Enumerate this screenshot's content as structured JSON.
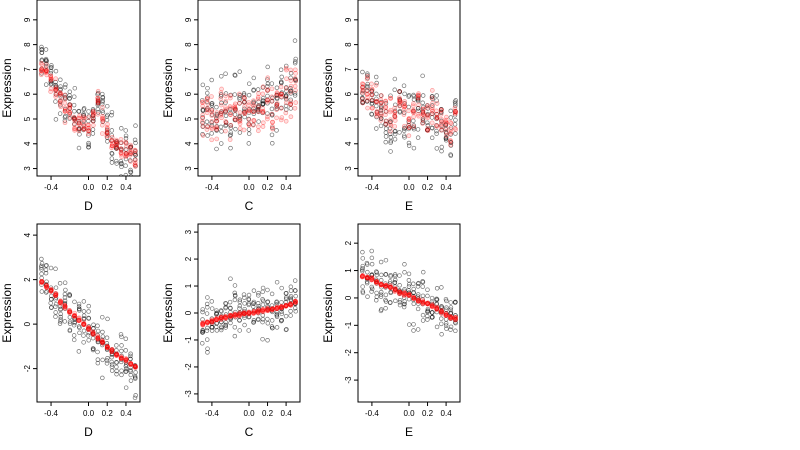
{
  "chart_data": [
    {
      "type": "scatter",
      "xlabel": "D",
      "ylabel": "Expression",
      "xlim": [
        -0.55,
        0.55
      ],
      "ylim": [
        2.7,
        9.8
      ],
      "xticks": [
        "-0.4",
        "0.0",
        "0.2",
        "0.4"
      ],
      "xtick_values": [
        -0.4,
        0.0,
        0.2,
        0.4
      ],
      "yticks": [
        "3",
        "4",
        "5",
        "6",
        "7",
        "8",
        "9"
      ],
      "ytick_values": [
        3,
        4,
        5,
        6,
        7,
        8,
        9
      ],
      "grid": false,
      "colors": {
        "observed": "#000000",
        "fitted": "#ff0000"
      },
      "x_groups": [
        -0.5,
        -0.45,
        -0.4,
        -0.35,
        -0.3,
        -0.25,
        -0.2,
        -0.15,
        -0.1,
        -0.05,
        0.0,
        0.05,
        0.1,
        0.15,
        0.2,
        0.25,
        0.3,
        0.35,
        0.4,
        0.45,
        0.5
      ],
      "observed_center": [
        7.3,
        7.2,
        6.6,
        6.3,
        5.9,
        5.6,
        5.4,
        5.1,
        5.0,
        4.8,
        4.6,
        5.0,
        5.8,
        5.1,
        4.7,
        4.1,
        3.9,
        3.8,
        3.7,
        3.6,
        3.5
      ],
      "observed_spread": 1.0,
      "fitted_center": [
        7.0,
        6.9,
        6.5,
        6.2,
        5.8,
        5.5,
        5.3,
        5.0,
        4.9,
        4.8,
        4.6,
        5.0,
        5.7,
        5.0,
        4.6,
        4.1,
        3.9,
        3.8,
        3.7,
        3.6,
        3.5
      ],
      "fitted_spread": 0.45
    },
    {
      "type": "scatter",
      "xlabel": "C",
      "ylabel": "Expression",
      "xlim": [
        -0.55,
        0.55
      ],
      "ylim": [
        2.7,
        9.8
      ],
      "xticks": [
        "-0.4",
        "0.0",
        "0.2",
        "0.4"
      ],
      "xtick_values": [
        -0.4,
        0.0,
        0.2,
        0.4
      ],
      "yticks": [
        "3",
        "4",
        "5",
        "6",
        "7",
        "8",
        "9"
      ],
      "ytick_values": [
        3,
        4,
        5,
        6,
        7,
        8,
        9
      ],
      "grid": false,
      "colors": {
        "observed": "#000000",
        "fitted": "#ff0000"
      },
      "x_groups": [
        -0.5,
        -0.45,
        -0.4,
        -0.35,
        -0.3,
        -0.25,
        -0.2,
        -0.15,
        -0.1,
        -0.05,
        0.0,
        0.05,
        0.1,
        0.15,
        0.2,
        0.25,
        0.3,
        0.35,
        0.4,
        0.45,
        0.5
      ],
      "observed_center": [
        5.0,
        5.2,
        5.4,
        5.0,
        5.5,
        5.3,
        5.0,
        5.4,
        5.5,
        5.3,
        5.2,
        5.5,
        5.4,
        5.6,
        5.5,
        5.3,
        5.5,
        5.8,
        6.0,
        6.2,
        6.4
      ],
      "observed_spread": 1.3,
      "fitted_center": [
        5.0,
        5.1,
        5.2,
        5.0,
        5.4,
        5.3,
        5.0,
        5.4,
        5.5,
        5.3,
        5.2,
        5.5,
        5.4,
        5.6,
        5.5,
        5.3,
        5.5,
        5.7,
        5.9,
        6.0,
        6.2
      ],
      "fitted_spread": 1.0
    },
    {
      "type": "scatter",
      "xlabel": "E",
      "ylabel": "Expression",
      "xlim": [
        -0.55,
        0.55
      ],
      "ylim": [
        2.7,
        9.8
      ],
      "xticks": [
        "-0.4",
        "0.0",
        "0.2",
        "0.4"
      ],
      "xtick_values": [
        -0.4,
        0.0,
        0.2,
        0.4
      ],
      "yticks": [
        "3",
        "4",
        "5",
        "6",
        "7",
        "8",
        "9"
      ],
      "ytick_values": [
        3,
        4,
        5,
        6,
        7,
        8,
        9
      ],
      "grid": false,
      "colors": {
        "observed": "#000000",
        "fitted": "#ff0000"
      },
      "x_groups": [
        -0.5,
        -0.45,
        -0.4,
        -0.35,
        -0.3,
        -0.25,
        -0.2,
        -0.15,
        -0.1,
        -0.05,
        0.0,
        0.05,
        0.1,
        0.15,
        0.2,
        0.25,
        0.3,
        0.35,
        0.4,
        0.45,
        0.5
      ],
      "observed_center": [
        6.0,
        6.1,
        5.9,
        5.6,
        5.3,
        5.2,
        5.0,
        5.0,
        5.4,
        5.1,
        4.8,
        5.2,
        5.6,
        5.2,
        5.0,
        5.4,
        5.1,
        4.8,
        4.5,
        4.5,
        5.0
      ],
      "observed_spread": 1.1,
      "fitted_center": [
        6.1,
        6.1,
        5.9,
        5.6,
        5.4,
        5.3,
        5.2,
        5.1,
        5.5,
        5.2,
        4.9,
        5.3,
        5.7,
        5.3,
        5.1,
        5.5,
        5.2,
        4.9,
        4.6,
        4.6,
        5.1
      ],
      "fitted_spread": 0.7
    },
    {
      "type": "scatter",
      "xlabel": "D",
      "ylabel": "Expression",
      "xlim": [
        -0.55,
        0.55
      ],
      "ylim": [
        -3.5,
        4.5
      ],
      "xticks": [
        "-0.4",
        "0.0",
        "0.2",
        "0.4"
      ],
      "xtick_values": [
        -0.4,
        0.0,
        0.2,
        0.4
      ],
      "yticks": [
        "-2",
        "0",
        "2",
        "4"
      ],
      "ytick_values": [
        -2,
        0,
        2,
        4
      ],
      "grid": false,
      "colors": {
        "observed": "#000000",
        "fitted": "#ff0000"
      },
      "x_groups": [
        -0.5,
        -0.45,
        -0.4,
        -0.35,
        -0.3,
        -0.25,
        -0.2,
        -0.15,
        -0.1,
        -0.05,
        0.0,
        0.05,
        0.1,
        0.15,
        0.2,
        0.25,
        0.3,
        0.35,
        0.4,
        0.45,
        0.5
      ],
      "observed_center": [
        2.1,
        1.9,
        1.6,
        1.3,
        1.0,
        0.8,
        0.5,
        0.3,
        0.1,
        -0.1,
        -0.3,
        -0.5,
        -0.7,
        -0.9,
        -1.1,
        -1.3,
        -1.5,
        -1.7,
        -1.8,
        -2.0,
        -2.1
      ],
      "observed_spread": 1.1,
      "fitted_center": [
        1.9,
        1.7,
        1.5,
        1.3,
        1.0,
        0.8,
        0.6,
        0.4,
        0.2,
        0.0,
        -0.2,
        -0.4,
        -0.6,
        -0.8,
        -1.0,
        -1.2,
        -1.4,
        -1.5,
        -1.6,
        -1.8,
        -1.9
      ],
      "fitted_spread": 0.08
    },
    {
      "type": "scatter",
      "xlabel": "C",
      "ylabel": "Expression",
      "xlim": [
        -0.55,
        0.55
      ],
      "ylim": [
        -3.3,
        3.3
      ],
      "xticks": [
        "-0.4",
        "0.0",
        "0.2",
        "0.4"
      ],
      "xtick_values": [
        -0.4,
        0.0,
        0.2,
        0.4
      ],
      "yticks": [
        "-3",
        "-2",
        "-1",
        "0",
        "1",
        "2",
        "3"
      ],
      "ytick_values": [
        -3,
        -2,
        -1,
        0,
        1,
        2,
        3
      ],
      "grid": false,
      "colors": {
        "observed": "#000000",
        "fitted": "#ff0000"
      },
      "x_groups": [
        -0.5,
        -0.45,
        -0.4,
        -0.35,
        -0.3,
        -0.25,
        -0.2,
        -0.15,
        -0.1,
        -0.05,
        0.0,
        0.05,
        0.1,
        0.15,
        0.2,
        0.25,
        0.3,
        0.35,
        0.4,
        0.45,
        0.5
      ],
      "observed_center": [
        -0.4,
        -0.35,
        -0.3,
        -0.25,
        -0.2,
        -0.15,
        -0.1,
        -0.08,
        -0.05,
        -0.02,
        0.0,
        0.03,
        0.06,
        0.09,
        0.12,
        0.15,
        0.18,
        0.22,
        0.26,
        0.32,
        0.4
      ],
      "observed_spread": 0.9,
      "fitted_center": [
        -0.4,
        -0.35,
        -0.3,
        -0.25,
        -0.2,
        -0.15,
        -0.1,
        -0.08,
        -0.05,
        -0.02,
        0.0,
        0.03,
        0.06,
        0.09,
        0.12,
        0.15,
        0.18,
        0.22,
        0.26,
        0.32,
        0.4
      ],
      "fitted_spread": 0.06
    },
    {
      "type": "scatter",
      "xlabel": "E",
      "ylabel": "Expression",
      "xlim": [
        -0.55,
        0.55
      ],
      "ylim": [
        -3.8,
        2.7
      ],
      "xticks": [
        "-0.4",
        "0.0",
        "0.2",
        "0.4"
      ],
      "xtick_values": [
        -0.4,
        0.0,
        0.2,
        0.4
      ],
      "yticks": [
        "-3",
        "-2",
        "-1",
        "0",
        "1",
        "2"
      ],
      "ytick_values": [
        -3,
        -2,
        -1,
        0,
        1,
        2
      ],
      "grid": false,
      "colors": {
        "observed": "#000000",
        "fitted": "#ff0000"
      },
      "x_groups": [
        -0.5,
        -0.45,
        -0.4,
        -0.35,
        -0.3,
        -0.25,
        -0.2,
        -0.15,
        -0.1,
        -0.05,
        0.0,
        0.05,
        0.1,
        0.15,
        0.2,
        0.25,
        0.3,
        0.35,
        0.4,
        0.45,
        0.5
      ],
      "observed_center": [
        0.8,
        0.75,
        0.7,
        0.6,
        0.5,
        0.45,
        0.4,
        0.3,
        0.2,
        0.15,
        0.1,
        0.0,
        -0.1,
        -0.15,
        -0.2,
        -0.3,
        -0.4,
        -0.5,
        -0.6,
        -0.7,
        -0.75
      ],
      "observed_spread": 0.95,
      "fitted_center": [
        0.8,
        0.75,
        0.7,
        0.6,
        0.5,
        0.45,
        0.4,
        0.3,
        0.2,
        0.15,
        0.1,
        0.0,
        -0.1,
        -0.15,
        -0.2,
        -0.3,
        -0.4,
        -0.5,
        -0.6,
        -0.7,
        -0.75
      ],
      "fitted_spread": 0.06
    }
  ]
}
